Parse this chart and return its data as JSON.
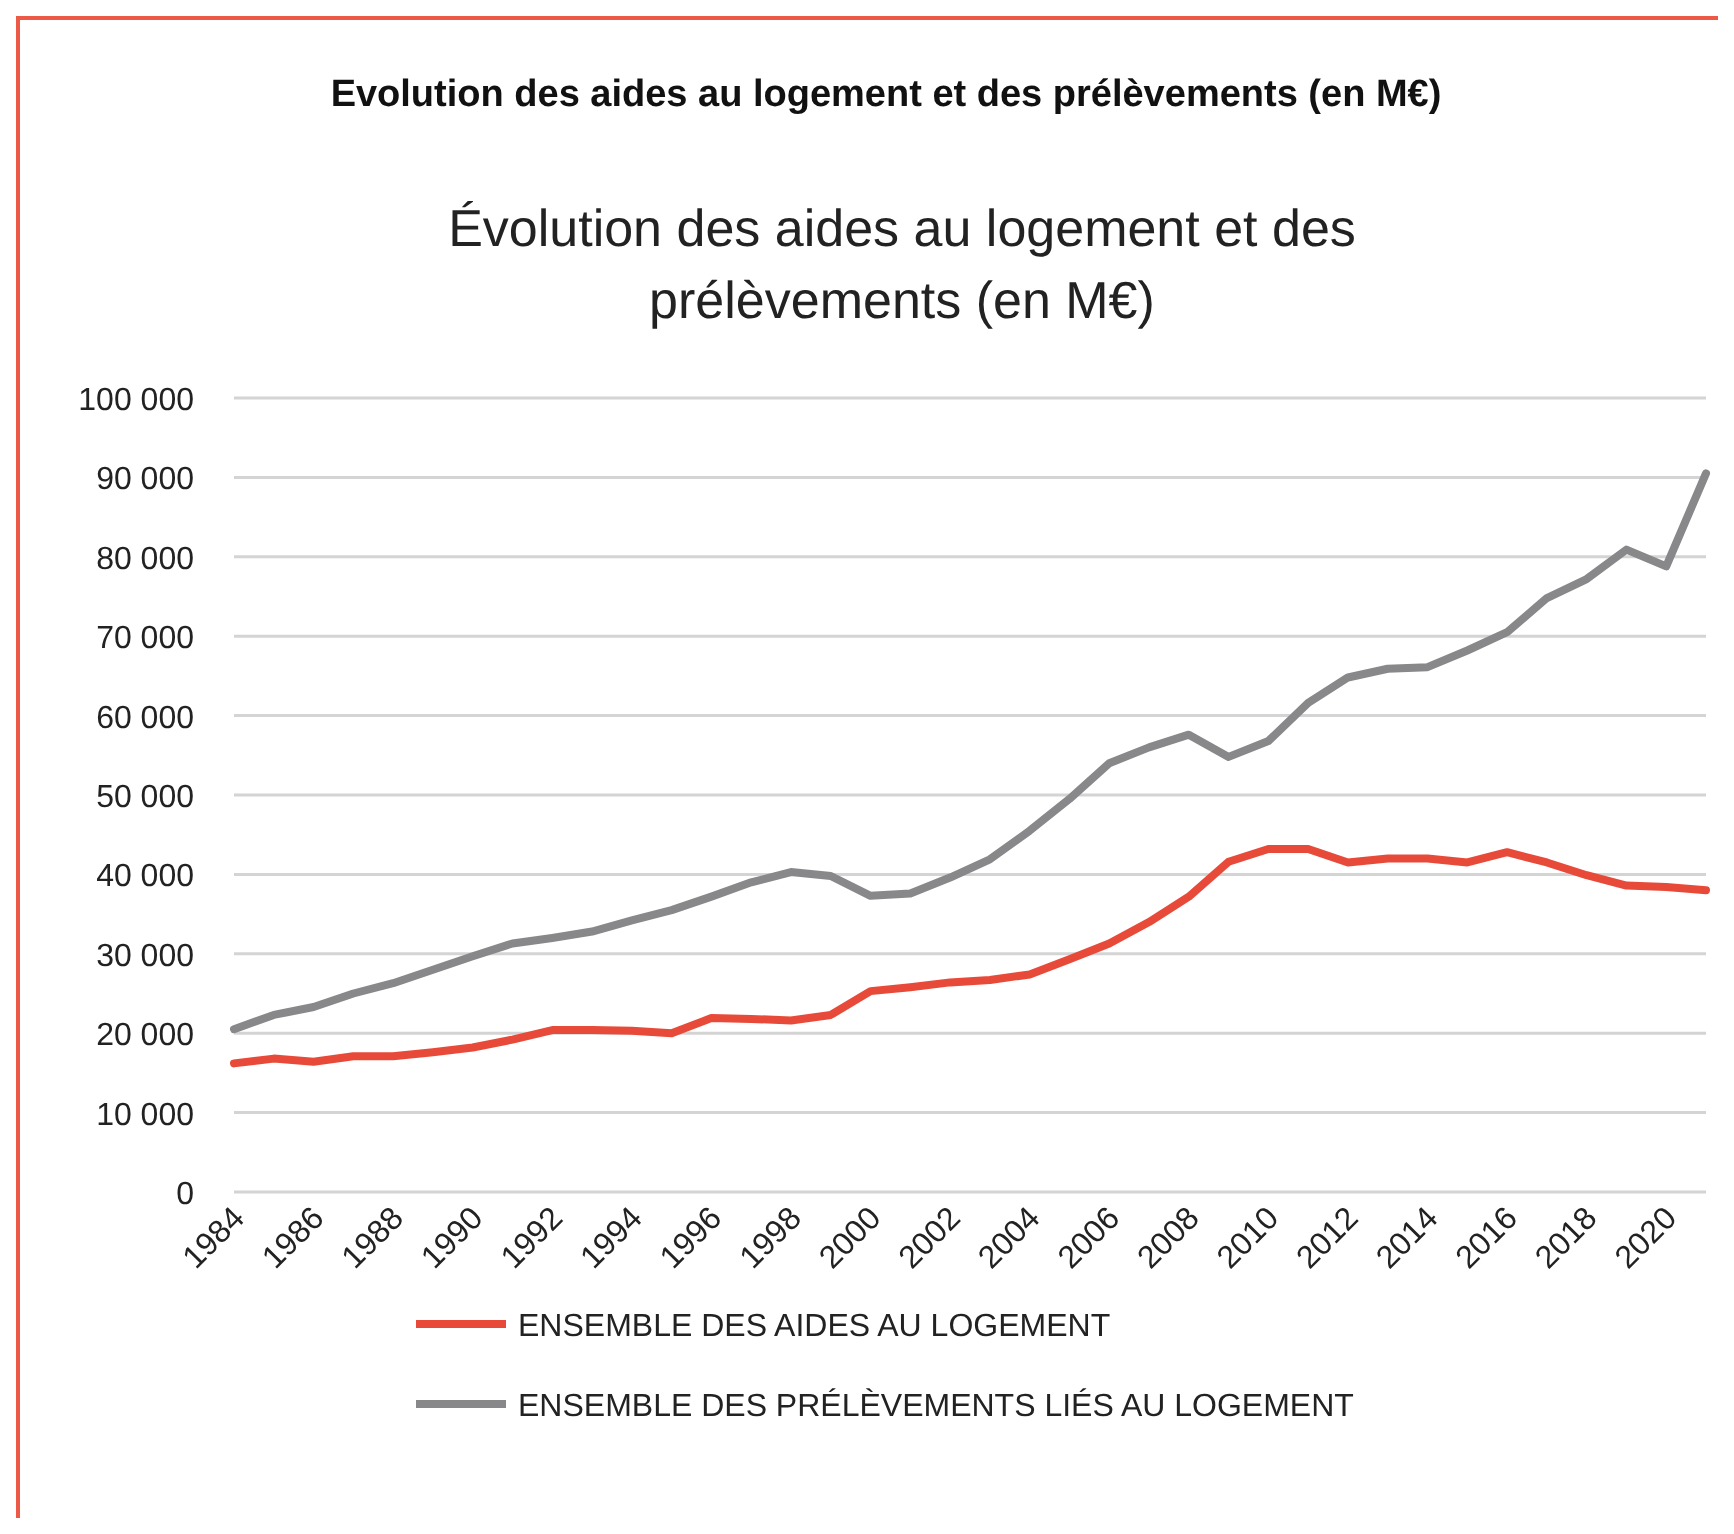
{
  "chart_data": {
    "type": "line",
    "title": "Evolution des aides au logement et des prélèvements (en M€)",
    "subtitle": "Évolution des aides au logement et des prélèvements (en M€)",
    "categories": [
      "1984",
      null,
      "1986",
      null,
      "1988",
      null,
      "1990",
      null,
      "1992",
      null,
      "1994",
      null,
      "1996",
      null,
      "1998",
      null,
      "2000",
      null,
      "2002",
      null,
      "2004",
      null,
      "2006",
      null,
      "2008",
      null,
      "2010",
      null,
      "2012",
      null,
      "2014",
      null,
      "2016",
      null,
      "2018",
      null,
      "2020",
      null
    ],
    "series": [
      {
        "name": "ENSEMBLE DES AIDES AU LOGEMENT",
        "color": "#e84a3a",
        "values": [
          16200,
          16800,
          16400,
          17100,
          17100,
          17600,
          18200,
          19200,
          20400,
          20400,
          20300,
          20000,
          21900,
          21800,
          21600,
          22300,
          25300,
          25800,
          26400,
          26700,
          27400,
          29300,
          31300,
          34000,
          37200,
          41600,
          43200,
          43200,
          41500,
          42000,
          42000,
          41500,
          42800,
          41500,
          39900,
          38600,
          38400,
          38000
        ]
      },
      {
        "name": "ENSEMBLE DES PRÉLÈVEMENTS LIÉS AU LOGEMENT",
        "color": "#88888b",
        "values": [
          20500,
          22300,
          23300,
          25000,
          26300,
          28000,
          29700,
          31300,
          32000,
          32800,
          34200,
          35500,
          37200,
          39000,
          40300,
          39800,
          37300,
          37600,
          39600,
          41900,
          45500,
          49500,
          54000,
          56000,
          57600,
          54800,
          56800,
          61600,
          64800,
          65900,
          66100,
          68200,
          70500,
          74800,
          77200,
          80900,
          78800,
          90500
        ]
      }
    ],
    "ylim": [
      0,
      100000
    ],
    "yticks": [
      0,
      {
        "value": 10000,
        "label": "10 000"
      },
      {
        "value": 20000,
        "label": "20 000"
      },
      {
        "value": 30000,
        "label": "30 000"
      },
      {
        "value": 40000,
        "label": "40 000"
      },
      {
        "value": 50000,
        "label": "50 000"
      },
      {
        "value": 60000,
        "label": "60 000"
      },
      {
        "value": 70000,
        "label": "70 000"
      },
      {
        "value": 80000,
        "label": "80 000"
      },
      {
        "value": 90000,
        "label": "90 000"
      },
      {
        "value": 100000,
        "label": "100 000"
      }
    ],
    "grid": "y",
    "legend": "bottom",
    "marker": "none",
    "line_style": "solid"
  }
}
